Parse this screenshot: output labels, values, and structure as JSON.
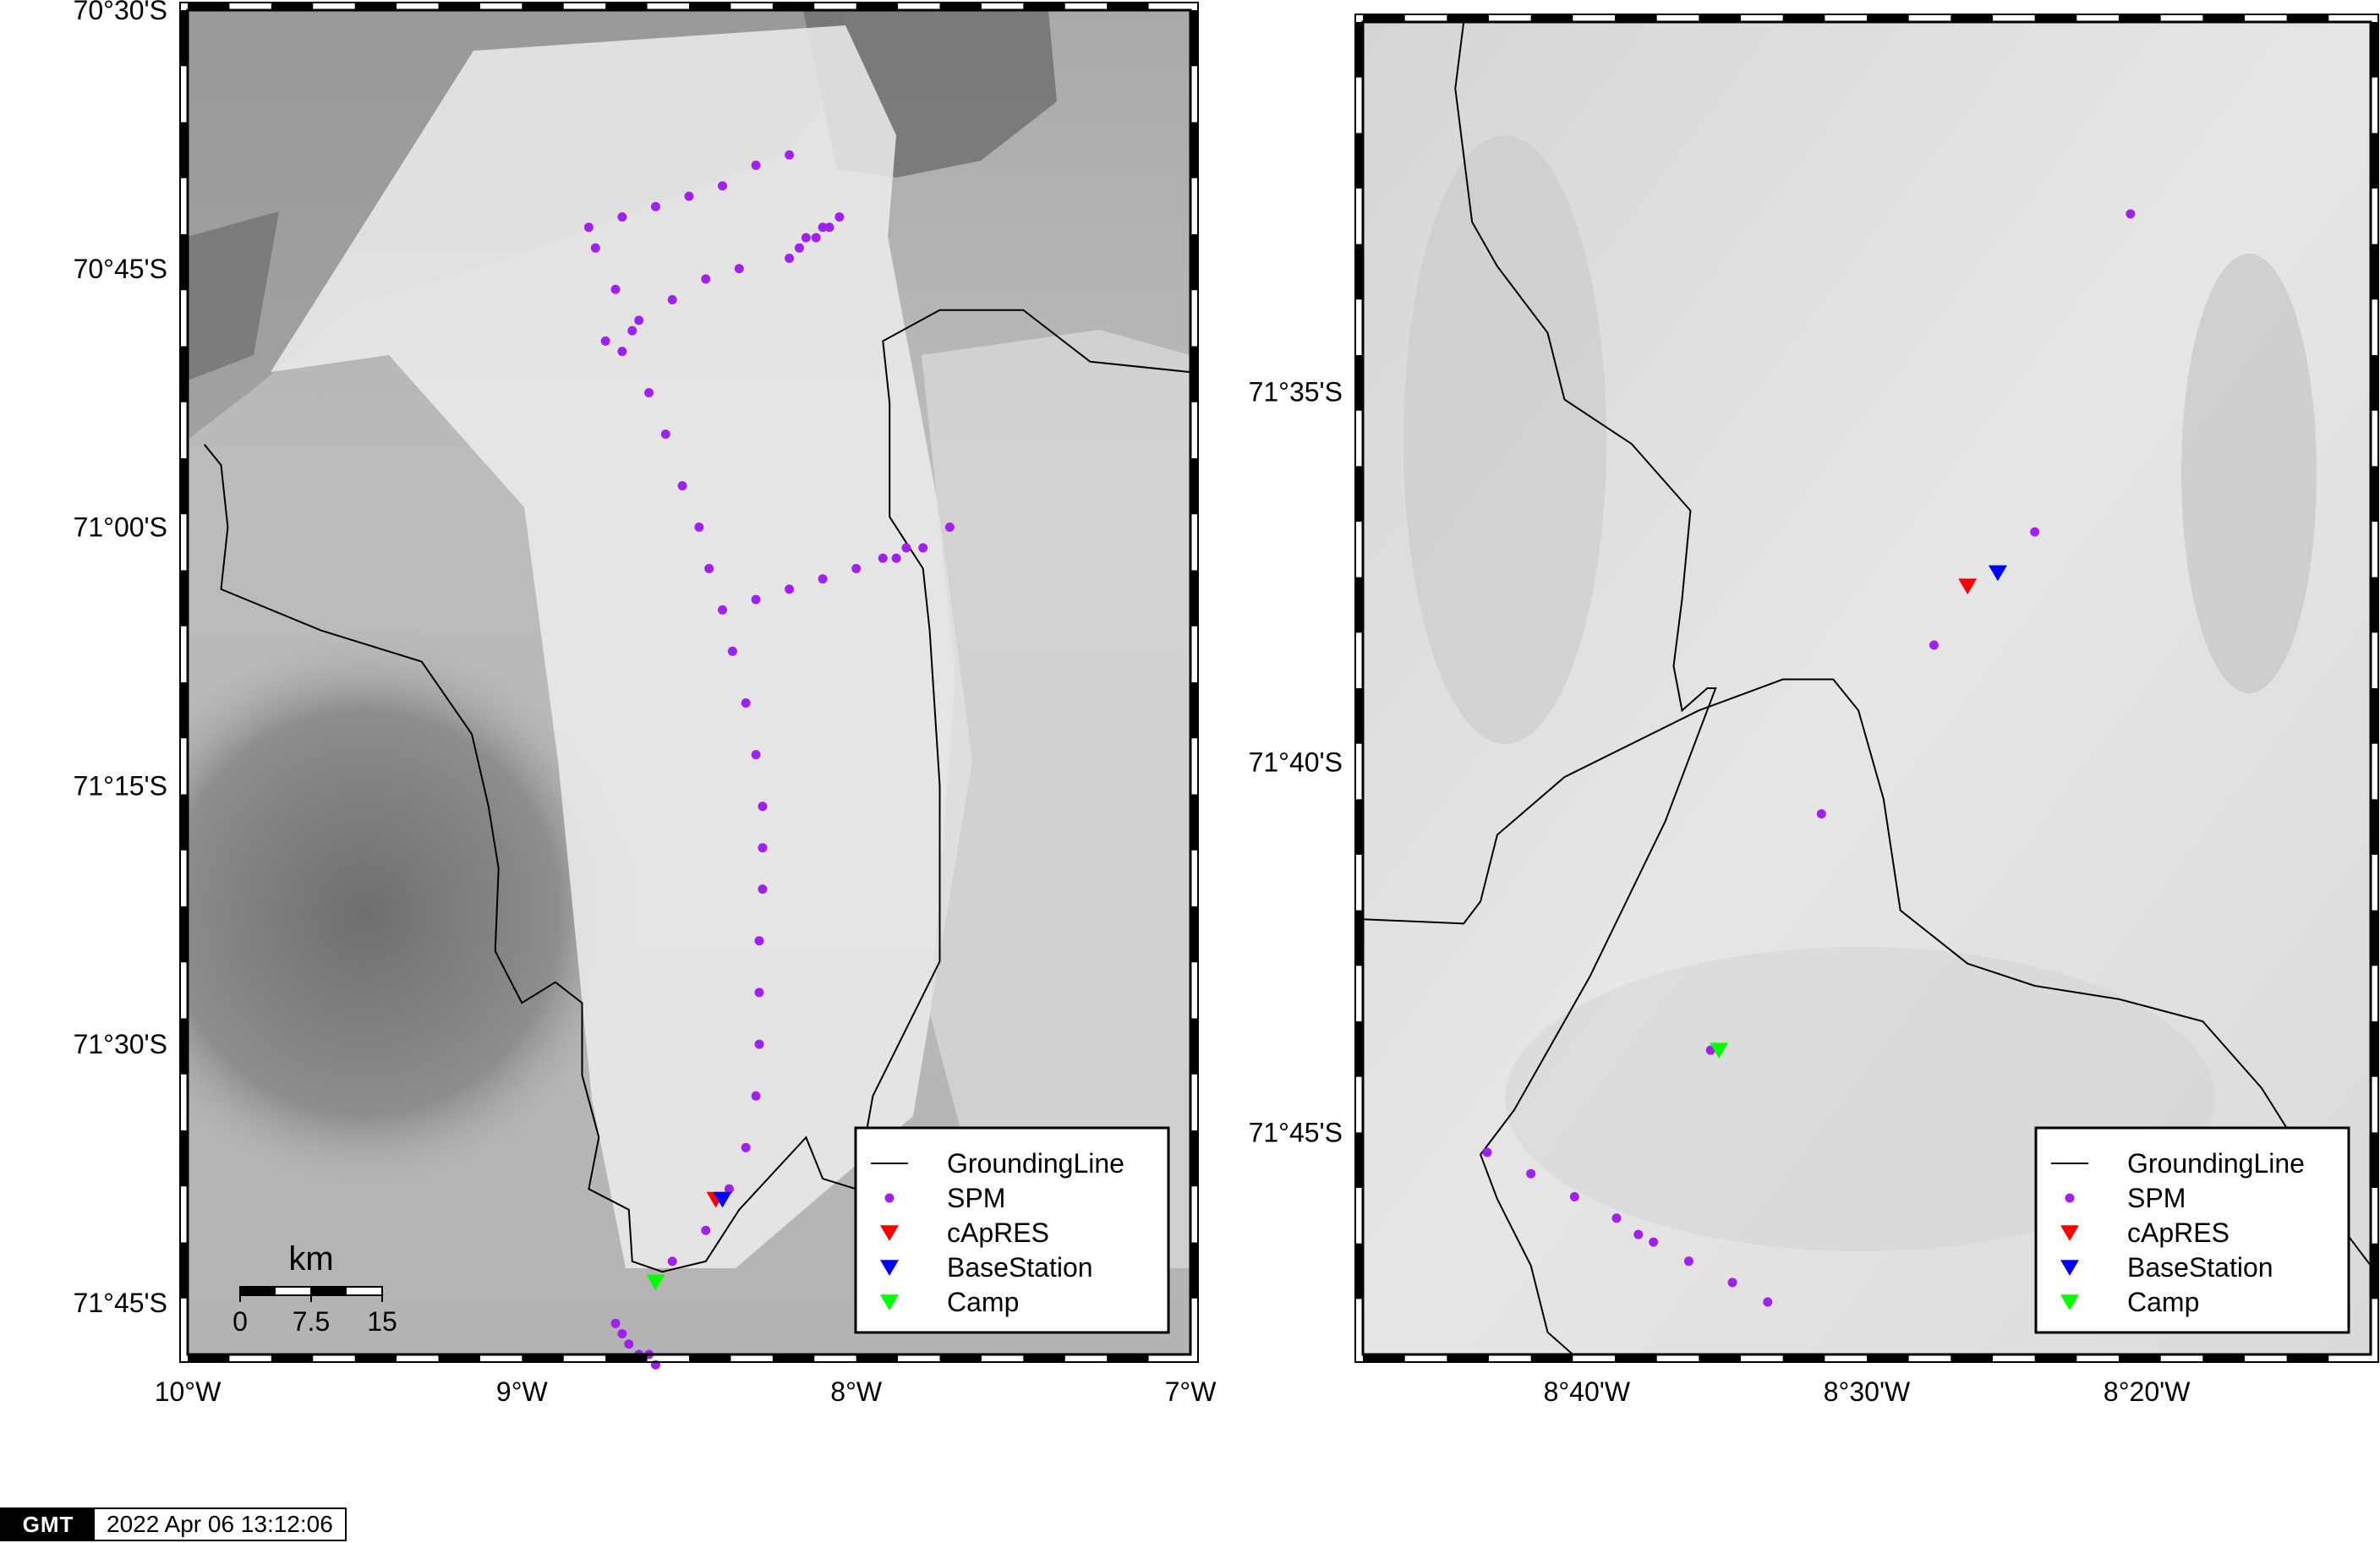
{
  "maps": [
    {
      "id": "overview",
      "lon_range": [
        -10,
        -7
      ],
      "lat_range": [
        -71.8,
        -70.5
      ],
      "x_ticks": [
        {
          "value": -10,
          "label": "10°W"
        },
        {
          "value": -9,
          "label": "9°W"
        },
        {
          "value": -8,
          "label": "8°W"
        },
        {
          "value": -7,
          "label": "7°W"
        }
      ],
      "y_ticks": [
        {
          "value": -70.5,
          "label": "70°30'S"
        },
        {
          "value": -70.75,
          "label": "70°45'S"
        },
        {
          "value": -71.0,
          "label": "71°00'S"
        },
        {
          "value": -71.25,
          "label": "71°15'S"
        },
        {
          "value": -71.5,
          "label": "71°30'S"
        },
        {
          "value": -71.75,
          "label": "71°45'S"
        }
      ],
      "scale_bar": {
        "unit": "km",
        "labels": [
          "0",
          "7.5",
          "15"
        ]
      },
      "grounding_line": [
        [
          [
            -9.95,
            -70.92
          ],
          [
            -9.9,
            -70.94
          ],
          [
            -9.88,
            -71.0
          ],
          [
            -9.9,
            -71.06
          ],
          [
            -9.6,
            -71.1
          ],
          [
            -9.3,
            -71.13
          ],
          [
            -9.15,
            -71.2
          ],
          [
            -9.1,
            -71.27
          ],
          [
            -9.07,
            -71.33
          ],
          [
            -9.08,
            -71.41
          ],
          [
            -9.0,
            -71.46
          ],
          [
            -8.9,
            -71.44
          ],
          [
            -8.82,
            -71.46
          ],
          [
            -8.82,
            -71.53
          ],
          [
            -8.77,
            -71.59
          ],
          [
            -8.8,
            -71.64
          ],
          [
            -8.68,
            -71.66
          ],
          [
            -8.67,
            -71.71
          ],
          [
            -8.58,
            -71.72
          ],
          [
            -8.45,
            -71.71
          ],
          [
            -8.35,
            -71.66
          ],
          [
            -8.15,
            -71.59
          ],
          [
            -8.1,
            -71.63
          ],
          [
            -8.0,
            -71.64
          ],
          [
            -7.95,
            -71.55
          ],
          [
            -7.75,
            -71.42
          ],
          [
            -7.75,
            -71.25
          ],
          [
            -7.78,
            -71.1
          ],
          [
            -7.8,
            -71.04
          ],
          [
            -7.9,
            -70.99
          ],
          [
            -7.9,
            -70.88
          ],
          [
            -7.92,
            -70.82
          ],
          [
            -7.75,
            -70.79
          ],
          [
            -7.5,
            -70.79
          ],
          [
            -7.3,
            -70.84
          ],
          [
            -7.0,
            -70.85
          ]
        ]
      ],
      "spm_points": [
        [
          -8.8,
          -70.71
        ],
        [
          -8.78,
          -70.73
        ],
        [
          -8.7,
          -70.7
        ],
        [
          -8.6,
          -70.69
        ],
        [
          -8.5,
          -70.68
        ],
        [
          -8.4,
          -70.67
        ],
        [
          -8.3,
          -70.65
        ],
        [
          -8.2,
          -70.64
        ],
        [
          -8.2,
          -70.74
        ],
        [
          -8.17,
          -70.73
        ],
        [
          -8.15,
          -70.72
        ],
        [
          -8.12,
          -70.72
        ],
        [
          -8.1,
          -70.71
        ],
        [
          -8.08,
          -70.71
        ],
        [
          -8.05,
          -70.7
        ],
        [
          -8.35,
          -70.75
        ],
        [
          -8.45,
          -70.76
        ],
        [
          -8.55,
          -70.78
        ],
        [
          -8.65,
          -70.8
        ],
        [
          -8.72,
          -70.77
        ],
        [
          -8.75,
          -70.82
        ],
        [
          -8.7,
          -70.83
        ],
        [
          -8.67,
          -70.81
        ],
        [
          -8.62,
          -70.87
        ],
        [
          -8.57,
          -70.91
        ],
        [
          -8.52,
          -70.96
        ],
        [
          -8.47,
          -71.0
        ],
        [
          -8.44,
          -71.04
        ],
        [
          -8.4,
          -71.08
        ],
        [
          -8.37,
          -71.12
        ],
        [
          -8.3,
          -71.07
        ],
        [
          -8.2,
          -71.06
        ],
        [
          -8.1,
          -71.05
        ],
        [
          -8.0,
          -71.04
        ],
        [
          -7.92,
          -71.03
        ],
        [
          -7.88,
          -71.03
        ],
        [
          -7.85,
          -71.02
        ],
        [
          -7.8,
          -71.02
        ],
        [
          -7.72,
          -71.0
        ],
        [
          -8.33,
          -71.17
        ],
        [
          -8.3,
          -71.22
        ],
        [
          -8.28,
          -71.27
        ],
        [
          -8.28,
          -71.31
        ],
        [
          -8.28,
          -71.35
        ],
        [
          -8.29,
          -71.4
        ],
        [
          -8.29,
          -71.45
        ],
        [
          -8.29,
          -71.5
        ],
        [
          -8.3,
          -71.55
        ],
        [
          -8.33,
          -71.6
        ],
        [
          -8.38,
          -71.64
        ],
        [
          -8.45,
          -71.68
        ],
        [
          -8.55,
          -71.71
        ],
        [
          -8.72,
          -71.77
        ],
        [
          -8.7,
          -71.78
        ],
        [
          -8.68,
          -71.79
        ],
        [
          -8.65,
          -71.8
        ],
        [
          -8.62,
          -71.8
        ],
        [
          -8.6,
          -71.81
        ]
      ],
      "capres": [
        [
          -8.42,
          -71.65
        ]
      ],
      "basestation": [
        [
          -8.4,
          -71.65
        ]
      ],
      "camp": [
        [
          -8.6,
          -71.73
        ]
      ]
    },
    {
      "id": "inset",
      "lon_range": [
        -8.8,
        -8.2
      ],
      "lat_range": [
        -71.8,
        -71.5
      ],
      "x_ticks": [
        {
          "value": -8.6667,
          "label": "8°40'W"
        },
        {
          "value": -8.5,
          "label": "8°30'W"
        },
        {
          "value": -8.3333,
          "label": "8°20'W"
        }
      ],
      "y_ticks": [
        {
          "value": -71.5833,
          "label": "71°35'S"
        },
        {
          "value": -71.6667,
          "label": "71°40'S"
        },
        {
          "value": -71.75,
          "label": "71°45'S"
        }
      ],
      "grounding_line": [
        [
          [
            -8.74,
            -71.5
          ],
          [
            -8.745,
            -71.515
          ],
          [
            -8.735,
            -71.545
          ],
          [
            -8.72,
            -71.555
          ],
          [
            -8.69,
            -71.57
          ],
          [
            -8.68,
            -71.585
          ],
          [
            -8.64,
            -71.595
          ],
          [
            -8.605,
            -71.61
          ],
          [
            -8.61,
            -71.63
          ],
          [
            -8.615,
            -71.645
          ],
          [
            -8.61,
            -71.655
          ],
          [
            -8.595,
            -71.65
          ],
          [
            -8.59,
            -71.65
          ],
          [
            -8.62,
            -71.68
          ],
          [
            -8.665,
            -71.715
          ],
          [
            -8.71,
            -71.745
          ],
          [
            -8.73,
            -71.755
          ],
          [
            -8.72,
            -71.765
          ],
          [
            -8.7,
            -71.78
          ],
          [
            -8.69,
            -71.795
          ],
          [
            -8.675,
            -71.8
          ]
        ],
        [
          [
            -8.8,
            -71.702
          ],
          [
            -8.74,
            -71.703
          ],
          [
            -8.73,
            -71.698
          ],
          [
            -8.72,
            -71.683
          ],
          [
            -8.68,
            -71.67
          ],
          [
            -8.6,
            -71.655
          ],
          [
            -8.55,
            -71.648
          ],
          [
            -8.52,
            -71.648
          ],
          [
            -8.505,
            -71.655
          ],
          [
            -8.49,
            -71.675
          ],
          [
            -8.48,
            -71.7
          ],
          [
            -8.44,
            -71.712
          ],
          [
            -8.4,
            -71.717
          ],
          [
            -8.35,
            -71.72
          ],
          [
            -8.3,
            -71.725
          ],
          [
            -8.265,
            -71.74
          ],
          [
            -8.24,
            -71.755
          ],
          [
            -8.22,
            -71.77
          ],
          [
            -8.2,
            -71.78
          ]
        ]
      ],
      "spm_points": [
        [
          -8.343,
          -71.5432
        ],
        [
          -8.4,
          -71.6148
        ],
        [
          -8.46,
          -71.6403
        ],
        [
          -8.527,
          -71.6783
        ],
        [
          -8.593,
          -71.7315
        ],
        [
          -8.726,
          -71.7545
        ],
        [
          -8.7,
          -71.7593
        ],
        [
          -8.674,
          -71.7645
        ],
        [
          -8.649,
          -71.7693
        ],
        [
          -8.636,
          -71.773
        ],
        [
          -8.627,
          -71.7747
        ],
        [
          -8.606,
          -71.779
        ],
        [
          -8.58,
          -71.7838
        ],
        [
          -8.559,
          -71.7882
        ]
      ],
      "capres": [
        [
          -8.44,
          -71.627
        ]
      ],
      "basestation": [
        [
          -8.422,
          -71.624
        ]
      ],
      "camp": [
        [
          -8.588,
          -71.7315
        ]
      ]
    }
  ],
  "legend": {
    "items": [
      {
        "type": "line",
        "label": "GroundingLine",
        "color": "#000000"
      },
      {
        "type": "circle",
        "label": "SPM",
        "color": "#a020f0"
      },
      {
        "type": "triangle",
        "label": "cApRES",
        "color": "#ff0000"
      },
      {
        "type": "triangle",
        "label": "BaseStation",
        "color": "#0000ff"
      },
      {
        "type": "triangle",
        "label": "Camp",
        "color": "#00ff00"
      }
    ]
  },
  "timestamp": {
    "logo": "GMT",
    "date": "2022 Apr 06 13:12:06"
  }
}
